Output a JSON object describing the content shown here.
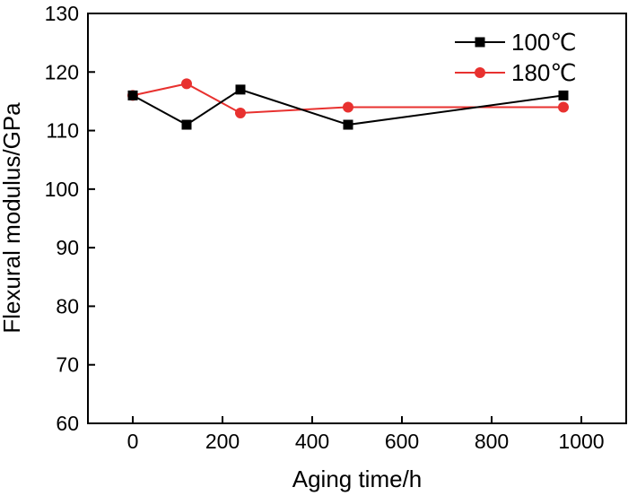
{
  "chart_data": {
    "type": "line",
    "xlabel": "Aging time/h",
    "ylabel": "Flexural modulus/GPa",
    "xlim": [
      -100,
      1100
    ],
    "ylim": [
      60,
      130
    ],
    "x_ticks": [
      0,
      200,
      400,
      600,
      800,
      1000
    ],
    "y_ticks": [
      60,
      70,
      80,
      90,
      100,
      110,
      120,
      130
    ],
    "grid": false,
    "legend_position": "top-right",
    "series": [
      {
        "name": "100℃",
        "color": "#000000",
        "marker": "square",
        "x": [
          0,
          120,
          240,
          480,
          960
        ],
        "y": [
          116,
          111,
          117,
          111,
          116
        ]
      },
      {
        "name": "180℃",
        "color": "#e8312f",
        "marker": "circle",
        "x": [
          0,
          120,
          240,
          480,
          960
        ],
        "y": [
          116,
          118,
          113,
          114,
          114
        ]
      }
    ]
  }
}
